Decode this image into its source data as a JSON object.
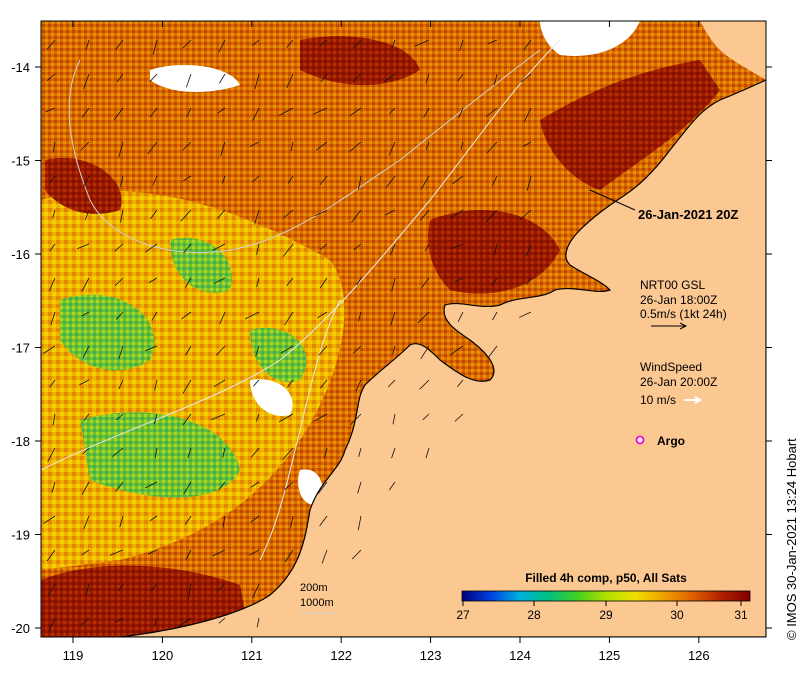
{
  "map": {
    "title_date": "26-Jan-2021 20Z",
    "colors": {
      "land": "#fcc892",
      "ocean_hot": "#8b0a00",
      "ocean_warm": "#c24a00",
      "ocean_mid": "#e08a00",
      "ocean_cool": "#f3c400",
      "ocean_green": "#8cc83c",
      "ocean_cold": "#19a0a0",
      "cloud": "#ffffff",
      "coast": "#000000",
      "argo": "#e020e0"
    },
    "x_ticks": [
      "119",
      "120",
      "121",
      "122",
      "123",
      "124",
      "125",
      "126"
    ],
    "y_ticks": [
      "-14",
      "-15",
      "-16",
      "-17",
      "-18",
      "-19",
      "-20"
    ]
  },
  "legend": {
    "gsl_title": "NRT00 GSL",
    "gsl_time": "26-Jan 18:00Z",
    "gsl_scale": "0.5m/s (1kt 24h)",
    "wind_title": "WindSpeed",
    "wind_time": "26-Jan 20:00Z",
    "wind_scale": "10 m/s",
    "argo_label": "Argo",
    "contour_200": "200m",
    "contour_1000": "1000m"
  },
  "colorbar": {
    "title": "Filled 4h comp, p50, All Sats",
    "ticks": [
      "27",
      "28",
      "29",
      "30",
      "31"
    ],
    "stops": [
      "#00007a",
      "#0040e0",
      "#00b0e0",
      "#00c080",
      "#40d020",
      "#b0e000",
      "#f0e000",
      "#f0a000",
      "#e06000",
      "#b02000",
      "#800000"
    ]
  },
  "credit": "© IMOS 30-Jan-2021 13:24 Hobart"
}
